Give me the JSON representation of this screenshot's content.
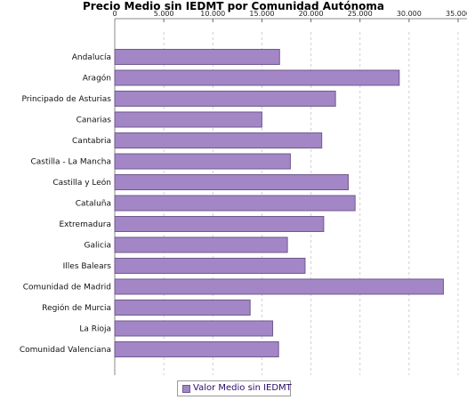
{
  "chart_data": {
    "type": "bar",
    "orientation": "horizontal",
    "title": "Precio Medio sin IEDMT por Comunidad Autónoma",
    "categories": [
      "Andalucía",
      "Aragón",
      "Principado de Asturias",
      "Canarias",
      "Cantabria",
      "Castilla - La Mancha",
      "Castilla y León",
      "Cataluña",
      "Extremadura",
      "Galicia",
      "Illes Balears",
      "Comunidad de Madrid",
      "Región de Murcia",
      "La Rioja",
      "Comunidad Valenciana"
    ],
    "series": [
      {
        "name": "Valor Medio sin IEDMT",
        "values": [
          16800,
          29000,
          22500,
          15000,
          21100,
          17900,
          23800,
          24500,
          21300,
          17600,
          19400,
          33500,
          13800,
          16100,
          16700
        ]
      }
    ],
    "xlim": [
      0,
      35000
    ],
    "xticks": [
      0,
      5000,
      10000,
      15000,
      20000,
      25000,
      30000,
      35000
    ],
    "xtick_labels": [
      "0",
      "5.000",
      "10.000",
      "15.000",
      "20.000",
      "25.000",
      "30.000",
      "35.000"
    ],
    "xaxis_position": "top",
    "grid": true,
    "legend_position": "bottom-center",
    "colors": {
      "bar": "#a386c6",
      "bar_border": "#6f5a8e",
      "grid": "#d0d0d0",
      "legend_text": "#2a0a66"
    }
  }
}
